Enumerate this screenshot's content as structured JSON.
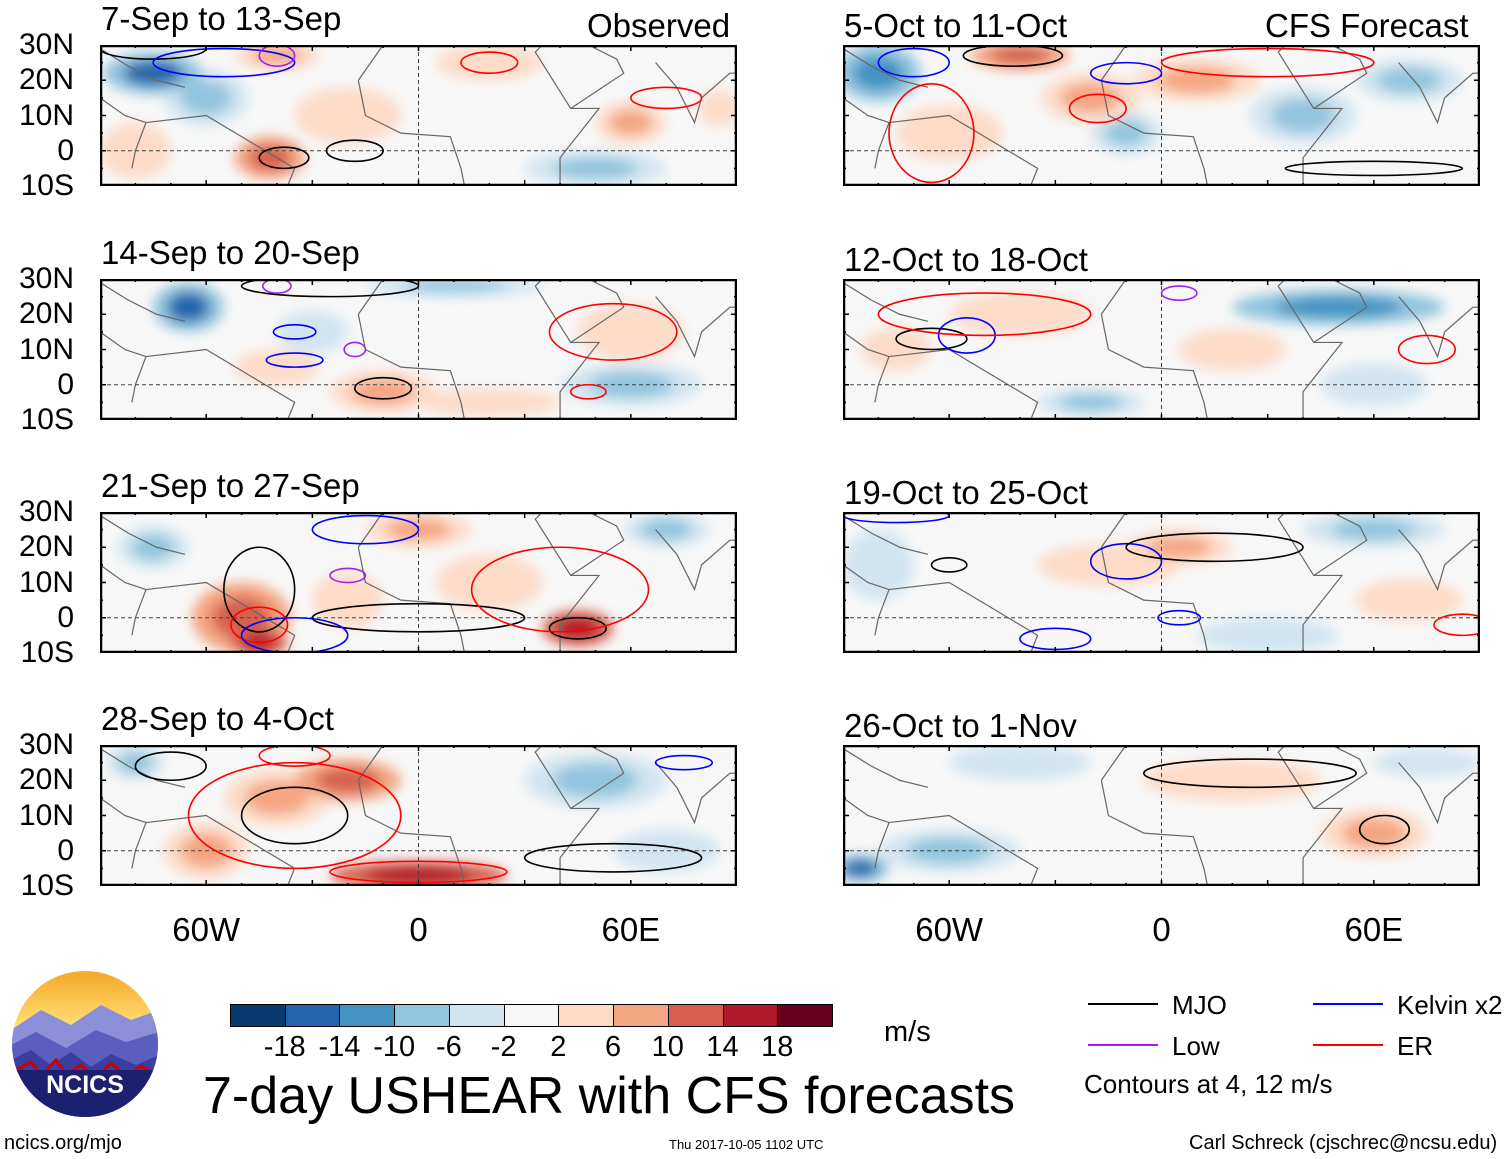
{
  "title": "7-day USHEAR with CFS forecasts",
  "units": "m/s",
  "section_labels": {
    "observed": "Observed",
    "forecast": "CFS Forecast"
  },
  "lat_ticks": [
    "30N",
    "20N",
    "10N",
    "0",
    "10S"
  ],
  "lon_ticks": [
    "60W",
    "0",
    "60E"
  ],
  "colorbar": {
    "labels": [
      "-18",
      "-14",
      "-10",
      "-6",
      "-2",
      "2",
      "6",
      "10",
      "14",
      "18"
    ],
    "colors": [
      "#083a70",
      "#2166ac",
      "#4393c3",
      "#92c5de",
      "#d1e5f0",
      "#f7f7f7",
      "#fddbc7",
      "#f4a582",
      "#d6604d",
      "#b2182b",
      "#67001f"
    ]
  },
  "legend": {
    "items": [
      {
        "label": "MJO",
        "color": "#000000"
      },
      {
        "label": "Kelvin x2",
        "color": "#0000ff"
      },
      {
        "label": "Low",
        "color": "#a020f0"
      },
      {
        "label": "ER",
        "color": "#ff0000"
      }
    ],
    "note": "Contours at 4, 12 m/s"
  },
  "footer": {
    "left": "ncics.org/mjo",
    "center": "Thu 2017-10-05 1102 UTC",
    "right": "Carl Schreck (cjschrec@ncsu.edu)"
  },
  "logo_text": "NCICS",
  "panels": [
    {
      "title": "7-Sep to 13-Sep",
      "tag": "observed",
      "field": [
        [
          -75,
          22,
          14,
          6,
          -14
        ],
        [
          -60,
          15,
          12,
          8,
          -6
        ],
        [
          -42,
          -2,
          10,
          6,
          14
        ],
        [
          -40,
          27,
          12,
          4,
          10
        ],
        [
          -20,
          10,
          15,
          8,
          4
        ],
        [
          60,
          8,
          10,
          6,
          8
        ],
        [
          85,
          12,
          6,
          5,
          6
        ],
        [
          50,
          -5,
          20,
          5,
          -6
        ],
        [
          20,
          25,
          15,
          5,
          4
        ],
        [
          -80,
          0,
          10,
          8,
          4
        ]
      ],
      "contours": [
        [
          -38,
          -2,
          7,
          3,
          "mjo"
        ],
        [
          -18,
          0,
          8,
          3,
          "mjo"
        ],
        [
          -75,
          29,
          15,
          3,
          "mjo"
        ],
        [
          -55,
          25,
          20,
          4,
          "kelvin"
        ],
        [
          -40,
          27,
          5,
          3,
          "low"
        ],
        [
          70,
          15,
          10,
          3,
          "er"
        ],
        [
          20,
          25,
          8,
          3,
          "er"
        ]
      ]
    },
    {
      "title": "5-Oct to 11-Oct",
      "tag": "forecast",
      "field": [
        [
          -80,
          22,
          12,
          8,
          -12
        ],
        [
          -40,
          27,
          14,
          4,
          14
        ],
        [
          -20,
          15,
          14,
          7,
          8
        ],
        [
          10,
          20,
          18,
          6,
          8
        ],
        [
          40,
          10,
          15,
          8,
          -6
        ],
        [
          -60,
          5,
          15,
          8,
          4
        ],
        [
          70,
          20,
          15,
          6,
          -6
        ],
        [
          -10,
          5,
          10,
          6,
          -6
        ]
      ],
      "contours": [
        [
          -42,
          27,
          14,
          3,
          "mjo"
        ],
        [
          -70,
          25,
          10,
          4,
          "kelvin"
        ],
        [
          -18,
          12,
          8,
          4,
          "er"
        ],
        [
          30,
          25,
          30,
          4,
          "er"
        ],
        [
          -65,
          5,
          12,
          14,
          "er"
        ],
        [
          60,
          -5,
          25,
          2,
          "mjo"
        ],
        [
          -10,
          22,
          10,
          3,
          "kelvin"
        ]
      ]
    },
    {
      "title": "14-Sep to 20-Sep",
      "tag": "observed",
      "field": [
        [
          -65,
          22,
          10,
          7,
          -14
        ],
        [
          -30,
          15,
          10,
          6,
          -4
        ],
        [
          -10,
          -2,
          15,
          6,
          10
        ],
        [
          20,
          -5,
          20,
          4,
          6
        ],
        [
          60,
          15,
          15,
          8,
          4
        ],
        [
          60,
          0,
          20,
          6,
          -6
        ],
        [
          10,
          28,
          25,
          3,
          -8
        ],
        [
          -40,
          5,
          12,
          5,
          4
        ]
      ],
      "contours": [
        [
          -25,
          28,
          25,
          3,
          "mjo"
        ],
        [
          -10,
          -1,
          8,
          3,
          "mjo"
        ],
        [
          -35,
          15,
          6,
          2,
          "kelvin"
        ],
        [
          -35,
          7,
          8,
          2,
          "kelvin"
        ],
        [
          55,
          15,
          18,
          8,
          "er"
        ],
        [
          48,
          -2,
          5,
          2,
          "er"
        ],
        [
          -18,
          10,
          3,
          2,
          "low"
        ],
        [
          -40,
          28,
          4,
          2,
          "low"
        ]
      ]
    },
    {
      "title": "12-Oct to 18-Oct",
      "tag": "forecast",
      "field": [
        [
          50,
          22,
          30,
          5,
          -12
        ],
        [
          -40,
          20,
          20,
          6,
          6
        ],
        [
          -75,
          10,
          10,
          6,
          6
        ],
        [
          20,
          10,
          15,
          6,
          4
        ],
        [
          -20,
          -5,
          15,
          4,
          -6
        ],
        [
          60,
          0,
          15,
          6,
          -4
        ]
      ],
      "contours": [
        [
          -65,
          13,
          10,
          3,
          "mjo"
        ],
        [
          -55,
          14,
          8,
          5,
          "kelvin"
        ],
        [
          -50,
          20,
          30,
          6,
          "er"
        ],
        [
          75,
          10,
          8,
          4,
          "er"
        ],
        [
          5,
          26,
          5,
          2,
          "low"
        ]
      ]
    },
    {
      "title": "21-Sep to 27-Sep",
      "tag": "observed",
      "field": [
        [
          -50,
          0,
          14,
          10,
          14
        ],
        [
          -45,
          -7,
          8,
          4,
          18
        ],
        [
          45,
          -3,
          10,
          5,
          18
        ],
        [
          0,
          25,
          15,
          5,
          10
        ],
        [
          -75,
          20,
          10,
          6,
          -6
        ],
        [
          70,
          25,
          12,
          5,
          -8
        ],
        [
          20,
          10,
          15,
          8,
          4
        ],
        [
          -20,
          5,
          10,
          8,
          4
        ]
      ],
      "contours": [
        [
          -45,
          8,
          10,
          12,
          "mjo"
        ],
        [
          0,
          0,
          30,
          4,
          "mjo"
        ],
        [
          45,
          -3,
          8,
          3,
          "mjo"
        ],
        [
          -45,
          -2,
          8,
          5,
          "er"
        ],
        [
          40,
          8,
          25,
          12,
          "er"
        ],
        [
          -35,
          -5,
          15,
          5,
          "kelvin"
        ],
        [
          -15,
          25,
          15,
          4,
          "kelvin"
        ],
        [
          -20,
          12,
          5,
          2,
          "low"
        ]
      ]
    },
    {
      "title": "19-Oct to 25-Oct",
      "tag": "forecast",
      "field": [
        [
          -15,
          15,
          20,
          6,
          6
        ],
        [
          5,
          20,
          15,
          5,
          8
        ],
        [
          60,
          25,
          20,
          5,
          -6
        ],
        [
          -80,
          15,
          10,
          10,
          -4
        ],
        [
          30,
          -5,
          20,
          5,
          -4
        ],
        [
          70,
          5,
          15,
          6,
          4
        ]
      ],
      "contours": [
        [
          -10,
          16,
          10,
          5,
          "kelvin"
        ],
        [
          15,
          20,
          25,
          4,
          "mjo"
        ],
        [
          -60,
          15,
          5,
          2,
          "mjo"
        ],
        [
          5,
          0,
          6,
          2,
          "kelvin"
        ],
        [
          -30,
          -6,
          10,
          3,
          "kelvin"
        ],
        [
          85,
          -2,
          8,
          3,
          "er"
        ],
        [
          -75,
          29,
          15,
          2,
          "kelvin"
        ]
      ]
    },
    {
      "title": "28-Sep to 4-Oct",
      "tag": "observed",
      "field": [
        [
          -40,
          15,
          15,
          8,
          8
        ],
        [
          -20,
          20,
          15,
          6,
          12
        ],
        [
          -60,
          0,
          12,
          8,
          10
        ],
        [
          0,
          -7,
          25,
          4,
          18
        ],
        [
          50,
          20,
          20,
          8,
          -6
        ],
        [
          70,
          0,
          15,
          6,
          -4
        ],
        [
          -80,
          25,
          8,
          5,
          -6
        ]
      ],
      "contours": [
        [
          -35,
          10,
          15,
          8,
          "mjo"
        ],
        [
          0,
          -6,
          25,
          3,
          "er"
        ],
        [
          -35,
          10,
          30,
          15,
          "er"
        ],
        [
          -70,
          24,
          10,
          4,
          "mjo"
        ],
        [
          55,
          -2,
          25,
          4,
          "mjo"
        ],
        [
          -35,
          27,
          10,
          3,
          "er"
        ],
        [
          75,
          25,
          8,
          2,
          "kelvin"
        ]
      ]
    },
    {
      "title": "26-Oct to 1-Nov",
      "tag": "forecast",
      "field": [
        [
          20,
          20,
          25,
          6,
          4
        ],
        [
          60,
          5,
          15,
          7,
          8
        ],
        [
          -60,
          0,
          20,
          6,
          -6
        ],
        [
          -85,
          -5,
          8,
          4,
          -14
        ],
        [
          -40,
          25,
          20,
          5,
          -4
        ],
        [
          75,
          25,
          15,
          4,
          -4
        ]
      ],
      "contours": [
        [
          25,
          22,
          30,
          4,
          "mjo"
        ],
        [
          63,
          6,
          7,
          4,
          "mjo"
        ]
      ]
    }
  ]
}
